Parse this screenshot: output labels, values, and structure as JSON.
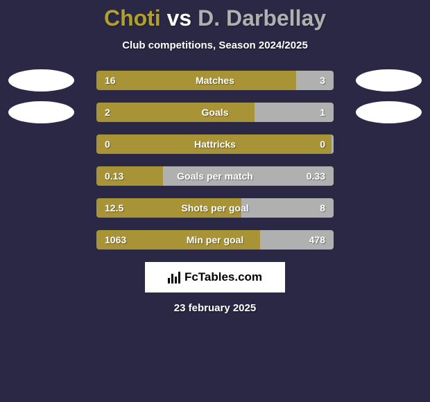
{
  "title": {
    "player1": "Choti",
    "vs": "vs",
    "player2": "D. Darbellay"
  },
  "subtitle": "Club competitions, Season 2024/2025",
  "colors": {
    "background": "#2a2845",
    "player1_bar": "#a89436",
    "player2_bar": "#b0b0b0",
    "text": "#ffffff",
    "avatar": "#ffffff"
  },
  "stats": [
    {
      "label": "Matches",
      "left_value": "16",
      "right_value": "3",
      "left_pct": 84.2,
      "right_pct": 15.8,
      "show_avatars": true
    },
    {
      "label": "Goals",
      "left_value": "2",
      "right_value": "1",
      "left_pct": 66.7,
      "right_pct": 33.3,
      "show_avatars": true
    },
    {
      "label": "Hattricks",
      "left_value": "0",
      "right_value": "0",
      "left_pct": 99,
      "right_pct": 1,
      "show_avatars": false
    },
    {
      "label": "Goals per match",
      "left_value": "0.13",
      "right_value": "0.33",
      "left_pct": 28,
      "right_pct": 72,
      "show_avatars": false
    },
    {
      "label": "Shots per goal",
      "left_value": "12.5",
      "right_value": "8",
      "left_pct": 61,
      "right_pct": 39,
      "show_avatars": false
    },
    {
      "label": "Min per goal",
      "left_value": "1063",
      "right_value": "478",
      "left_pct": 69,
      "right_pct": 31,
      "show_avatars": false
    }
  ],
  "badge": {
    "text": "FcTables.com"
  },
  "date": "23 february 2025"
}
